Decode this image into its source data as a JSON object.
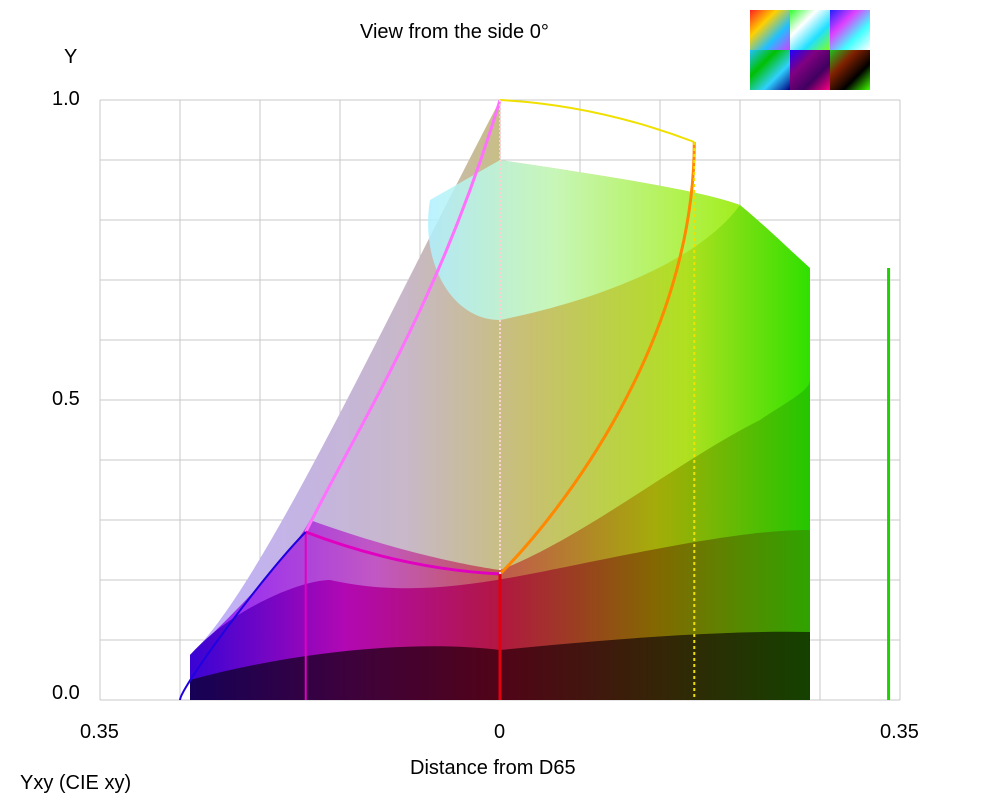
{
  "chart_data": {
    "type": "area",
    "title": "View from the side 0°",
    "xlabel": "Distance from D65",
    "ylabel": "Y",
    "footer": "Yxy (CIE xy)",
    "xlim": [
      -0.35,
      0.35
    ],
    "ylim": [
      0,
      1
    ],
    "x_tick_labels": [
      "0.35",
      "0",
      "0.35"
    ],
    "y_tick_labels": [
      "1.0",
      "0.5",
      "0.0"
    ],
    "grid": true,
    "gamut_outline": [
      {
        "name": "white",
        "x": 0.0,
        "y": 1.0
      },
      {
        "name": "yellow",
        "x": 0.17,
        "y": 0.93
      },
      {
        "name": "magenta",
        "x": -0.17,
        "y": 0.28
      },
      {
        "name": "red",
        "x": 0.0,
        "y": 0.21
      },
      {
        "name": "dark",
        "x": 0.0,
        "y": 0.0
      }
    ],
    "colors": {
      "yellow": "#f0e000",
      "orange": "#ff8800",
      "magenta": "#e000c0",
      "pink": "#ff70ff",
      "red": "#e00010",
      "green": "#20d000",
      "blue": "#2000e0"
    }
  }
}
